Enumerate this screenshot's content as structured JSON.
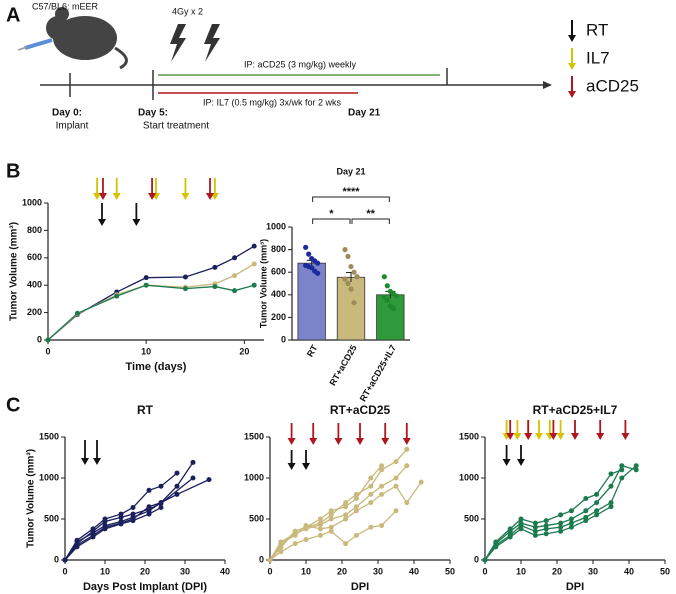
{
  "panel_a": {
    "panel_label": "A",
    "strain": "C57/BL6: mEER",
    "radiation": "4Gy x 2",
    "acd25_regimen": "IP: aCD25 (3 mg/kg) weekly",
    "il7_regimen": "IP: IL7 (0.5 mg/kg) 3x/wk for 2 wks",
    "day0": "Day 0:",
    "day0_note": "Implant",
    "day5": "Day 5:",
    "day5_note": "Start treatment",
    "day21": "Day 21",
    "legend": [
      {
        "label": "RT",
        "color": "#111111"
      },
      {
        "label": "IL7",
        "color": "#d4c400"
      },
      {
        "label": "aCD25",
        "color": "#b0161e"
      }
    ]
  },
  "panel_b_label": "B",
  "panel_c_label": "C",
  "chart_data": [
    {
      "type": "line",
      "xlabel": "Time (days)",
      "ylabel": "Tumor Volume (mm³)",
      "xlim": [
        0,
        22
      ],
      "xticks": [
        0,
        10,
        20
      ],
      "ylim": [
        0,
        1000
      ],
      "yticks": [
        0,
        200,
        400,
        600,
        800,
        1000
      ],
      "events": [
        {
          "color": "#d4c400",
          "x": [
            5,
            7,
            11,
            14,
            17
          ]
        },
        {
          "color": "#b0161e",
          "x": [
            5.6,
            10.6,
            16.5
          ]
        },
        {
          "color": "#111111",
          "x": [
            5.5,
            9
          ]
        }
      ],
      "series": [
        {
          "color": "#1b1f5c",
          "x": [
            0,
            3,
            7,
            10,
            14,
            17,
            19,
            21
          ],
          "values": [
            0,
            185,
            350,
            455,
            460,
            530,
            600,
            685
          ]
        },
        {
          "color": "#c9b97c",
          "x": [
            0,
            3,
            7,
            10,
            14,
            17,
            19,
            21
          ],
          "values": [
            0,
            190,
            330,
            400,
            385,
            410,
            470,
            555
          ]
        },
        {
          "color": "#1c7a4f",
          "x": [
            0,
            3,
            7,
            10,
            14,
            17,
            19,
            21
          ],
          "values": [
            0,
            195,
            320,
            400,
            375,
            390,
            360,
            400
          ]
        }
      ]
    },
    {
      "type": "bar",
      "title": "Day 21",
      "ylabel": "Tumor Volume (mm³)",
      "ylim": [
        0,
        1000
      ],
      "yticks": [
        0,
        200,
        400,
        600,
        800,
        1000
      ],
      "categories": [
        "RT",
        "RT+aCD25",
        "RT+aCD25+IL7"
      ],
      "values": [
        680,
        555,
        400
      ],
      "errors": [
        25,
        42,
        30
      ],
      "colors": [
        "#7b84c9",
        "#c9b97c",
        "#2e9a3c"
      ],
      "point_colors": [
        "#1b2a9c",
        "#9e8c5a",
        "#1e8a2c"
      ],
      "points": [
        [
          820,
          760,
          720,
          700,
          680,
          660,
          650,
          640,
          610,
          590
        ],
        [
          800,
          740,
          650,
          600,
          560,
          540,
          500,
          450,
          330,
          560
        ],
        [
          560,
          480,
          430,
          410,
          390,
          380,
          350,
          300,
          280
        ]
      ],
      "significance": [
        {
          "text": "****",
          "from": 0,
          "to": 2
        },
        {
          "text": "*",
          "from": 0,
          "to": 1
        },
        {
          "text": "**",
          "from": 1,
          "to": 2
        }
      ]
    },
    {
      "type": "line",
      "title": "RT",
      "xlabel": "Days Post Implant (DPI)",
      "ylabel": "Tumor Volume (mm³)",
      "xlim": [
        0,
        40
      ],
      "xticks": [
        0,
        10,
        20,
        30,
        40
      ],
      "ylim": [
        0,
        1500
      ],
      "yticks": [
        0,
        500,
        1000,
        1500
      ],
      "events": [
        {
          "color": "#111111",
          "x": [
            5,
            8
          ]
        }
      ],
      "series": [
        {
          "color": "#1b1f5c",
          "x": [
            0,
            3,
            7,
            10,
            14,
            17,
            21,
            24,
            28,
            32
          ],
          "values": [
            0,
            220,
            330,
            420,
            470,
            520,
            600,
            700,
            900,
            1190
          ]
        },
        {
          "color": "#1b1f5c",
          "x": [
            0,
            3,
            7,
            10,
            14,
            17,
            21,
            24,
            28,
            36
          ],
          "values": [
            0,
            180,
            300,
            400,
            450,
            500,
            650,
            700,
            800,
            980
          ]
        },
        {
          "color": "#1b1f5c",
          "x": [
            0,
            3,
            7,
            10,
            14,
            17,
            21,
            24,
            32
          ],
          "values": [
            0,
            200,
            350,
            470,
            520,
            560,
            620,
            690,
            1000
          ]
        },
        {
          "color": "#1b1f5c",
          "x": [
            0,
            3,
            7,
            10,
            14,
            17,
            21,
            24
          ],
          "values": [
            0,
            160,
            280,
            380,
            440,
            480,
            560,
            640
          ]
        },
        {
          "color": "#1b1f5c",
          "x": [
            0,
            3,
            7,
            10,
            14,
            17,
            21,
            24,
            28
          ],
          "values": [
            0,
            240,
            380,
            500,
            560,
            640,
            850,
            900,
            1060
          ]
        }
      ]
    },
    {
      "type": "line",
      "title": "RT+aCD25",
      "xlabel": "DPI",
      "xlim": [
        0,
        50
      ],
      "xticks": [
        0,
        10,
        20,
        30,
        40,
        50
      ],
      "ylim": [
        0,
        1500
      ],
      "yticks": [
        0,
        500,
        1000,
        1500
      ],
      "events": [
        {
          "color": "#b0161e",
          "x": [
            6,
            12,
            19,
            25,
            32,
            38
          ]
        },
        {
          "color": "#111111",
          "x": [
            6,
            10
          ]
        }
      ],
      "series": [
        {
          "color": "#c9b97c",
          "x": [
            0,
            3,
            7,
            10,
            14,
            17,
            21,
            24,
            28,
            31,
            35,
            38
          ],
          "values": [
            0,
            150,
            350,
            400,
            450,
            550,
            700,
            800,
            900,
            1100,
            1200,
            1350
          ]
        },
        {
          "color": "#c9b97c",
          "x": [
            0,
            3,
            7,
            10,
            14,
            17,
            21,
            24,
            28,
            31,
            35,
            38,
            42
          ],
          "values": [
            0,
            200,
            300,
            420,
            380,
            400,
            500,
            600,
            700,
            800,
            900,
            700,
            950
          ]
        },
        {
          "color": "#c9b97c",
          "x": [
            0,
            3,
            7,
            10,
            14,
            17,
            21,
            24,
            28,
            31,
            35
          ],
          "values": [
            0,
            100,
            200,
            250,
            300,
            350,
            200,
            300,
            400,
            420,
            600
          ]
        },
        {
          "color": "#c9b97c",
          "x": [
            0,
            3,
            7,
            10,
            14,
            17,
            21,
            24,
            28,
            31
          ],
          "values": [
            0,
            180,
            350,
            400,
            500,
            600,
            650,
            750,
            1000,
            1150
          ]
        },
        {
          "color": "#c9b97c",
          "x": [
            0,
            3,
            7,
            10,
            14,
            17,
            21,
            24,
            28,
            31,
            35,
            38
          ],
          "values": [
            0,
            220,
            320,
            380,
            430,
            500,
            550,
            650,
            800,
            900,
            1000,
            1150
          ]
        }
      ]
    },
    {
      "type": "line",
      "title": "RT+aCD25+IL7",
      "xlabel": "DPI",
      "xlim": [
        0,
        50
      ],
      "xticks": [
        0,
        10,
        20,
        30,
        40,
        50
      ],
      "ylim": [
        0,
        1500
      ],
      "yticks": [
        0,
        500,
        1000,
        1500
      ],
      "events": [
        {
          "color": "#d4c400",
          "x": [
            6,
            9,
            12,
            15,
            18,
            21
          ]
        },
        {
          "color": "#b0161e",
          "x": [
            7,
            12,
            19,
            25,
            32,
            39
          ]
        },
        {
          "color": "#111111",
          "x": [
            6,
            10
          ]
        }
      ],
      "series": [
        {
          "color": "#1c7a4f",
          "x": [
            0,
            3,
            7,
            10,
            14,
            17,
            21,
            24,
            28,
            31,
            35,
            38,
            42
          ],
          "values": [
            0,
            200,
            350,
            450,
            400,
            420,
            450,
            500,
            600,
            700,
            900,
            1150,
            1100
          ]
        },
        {
          "color": "#1c7a4f",
          "x": [
            0,
            3,
            7,
            10,
            14,
            17,
            21,
            24,
            28,
            31,
            35,
            38,
            42
          ],
          "values": [
            0,
            180,
            300,
            420,
            350,
            380,
            400,
            450,
            520,
            600,
            700,
            1000,
            1150
          ]
        },
        {
          "color": "#1c7a4f",
          "x": [
            0,
            3,
            7,
            10,
            14,
            17,
            21,
            24,
            28,
            31,
            35,
            38
          ],
          "values": [
            0,
            220,
            380,
            500,
            450,
            480,
            550,
            600,
            750,
            800,
            1050,
            1100
          ]
        },
        {
          "color": "#1c7a4f",
          "x": [
            0,
            3,
            7,
            10,
            14,
            17,
            21,
            24,
            28,
            31,
            35
          ],
          "values": [
            0,
            160,
            280,
            380,
            300,
            320,
            350,
            400,
            480,
            550,
            650
          ]
        }
      ]
    }
  ]
}
